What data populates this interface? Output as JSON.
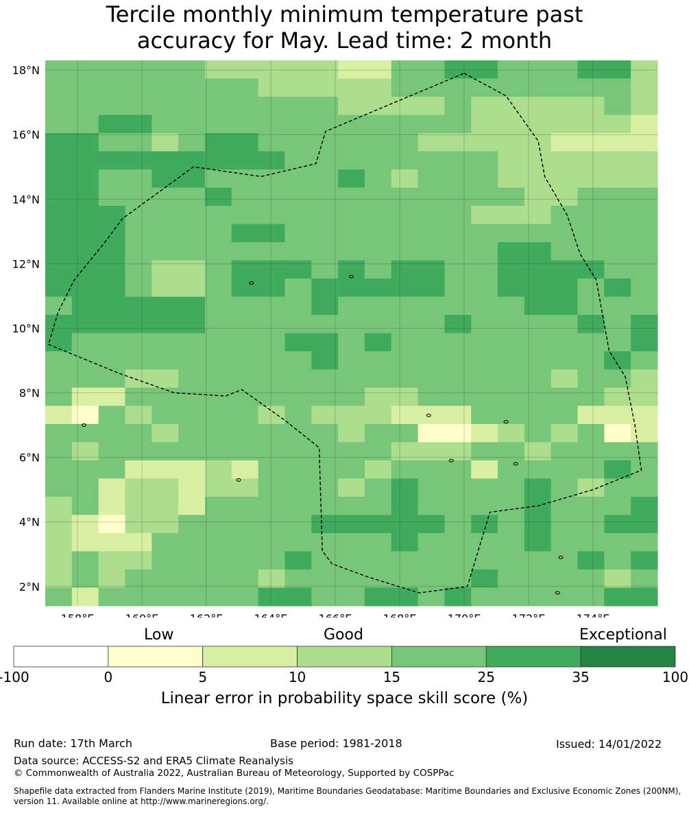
{
  "title": {
    "line1": "Tercile monthly minimum temperature past",
    "line2": "accuracy for May. Lead time: 2 month"
  },
  "chart_data": {
    "type": "heatmap",
    "title": "Tercile monthly minimum temperature past accuracy for May. Lead time: 2 month",
    "lon_range": [
      157,
      176
    ],
    "lat_range": [
      1.4,
      18.3
    ],
    "lon_ticks": [
      "158°E",
      "160°E",
      "162°E",
      "164°E",
      "166°E",
      "168°E",
      "170°E",
      "172°E",
      "174°E"
    ],
    "lat_ticks": [
      "18°N",
      "16°N",
      "14°N",
      "12°N",
      "10°N",
      "8°N",
      "6°N",
      "4°N",
      "2°N"
    ],
    "lon_tick_values": [
      158,
      160,
      162,
      164,
      166,
      168,
      170,
      172,
      174
    ],
    "lat_tick_values": [
      18,
      16,
      14,
      12,
      10,
      8,
      6,
      4,
      2
    ],
    "cell_size_deg": 0.833,
    "grid_categories": "values are colour classes 0..7: 0:-100..0, 1:0..5, 2:5..10, 3:10..15, 4:15..25, 5:25..35, 6:35..100",
    "grid": [
      [
        4,
        4,
        4,
        4,
        4,
        4,
        3,
        3,
        3,
        3,
        3,
        2,
        2,
        4,
        4,
        5,
        5,
        4,
        4,
        4,
        5,
        5,
        3
      ],
      [
        4,
        4,
        4,
        4,
        4,
        4,
        4,
        4,
        3,
        3,
        3,
        3,
        3,
        4,
        4,
        4,
        4,
        4,
        4,
        4,
        4,
        4,
        3
      ],
      [
        4,
        4,
        4,
        4,
        4,
        4,
        4,
        4,
        4,
        4,
        4,
        3,
        3,
        3,
        3,
        4,
        3,
        3,
        3,
        3,
        3,
        4,
        3
      ],
      [
        4,
        4,
        5,
        5,
        4,
        4,
        4,
        4,
        4,
        4,
        4,
        4,
        4,
        4,
        4,
        4,
        3,
        3,
        3,
        3,
        3,
        3,
        2
      ],
      [
        5,
        5,
        4,
        4,
        3,
        4,
        5,
        5,
        4,
        4,
        4,
        4,
        4,
        4,
        3,
        3,
        3,
        3,
        3,
        2,
        2,
        2,
        2
      ],
      [
        5,
        5,
        5,
        5,
        5,
        5,
        5,
        5,
        5,
        4,
        4,
        4,
        4,
        4,
        4,
        4,
        4,
        3,
        3,
        3,
        3,
        3,
        3
      ],
      [
        5,
        5,
        4,
        4,
        5,
        5,
        4,
        4,
        4,
        4,
        4,
        5,
        4,
        3,
        4,
        4,
        4,
        3,
        3,
        3,
        3,
        3,
        3
      ],
      [
        5,
        5,
        4,
        4,
        4,
        4,
        5,
        4,
        4,
        4,
        4,
        4,
        4,
        4,
        4,
        4,
        4,
        4,
        3,
        3,
        4,
        4,
        4
      ],
      [
        5,
        5,
        5,
        4,
        4,
        4,
        4,
        4,
        4,
        4,
        4,
        4,
        4,
        4,
        4,
        4,
        3,
        3,
        3,
        4,
        4,
        4,
        4
      ],
      [
        5,
        5,
        5,
        4,
        4,
        4,
        4,
        5,
        5,
        4,
        4,
        4,
        4,
        4,
        4,
        4,
        4,
        4,
        4,
        4,
        4,
        4,
        4
      ],
      [
        5,
        5,
        5,
        4,
        4,
        4,
        4,
        4,
        4,
        4,
        4,
        4,
        4,
        4,
        4,
        4,
        4,
        5,
        5,
        4,
        4,
        4,
        4
      ],
      [
        5,
        5,
        5,
        4,
        3,
        3,
        4,
        5,
        5,
        5,
        4,
        5,
        4,
        5,
        5,
        4,
        4,
        5,
        5,
        5,
        5,
        4,
        4
      ],
      [
        5,
        5,
        5,
        4,
        3,
        3,
        4,
        5,
        5,
        4,
        5,
        5,
        5,
        5,
        5,
        4,
        4,
        5,
        5,
        5,
        4,
        5,
        4
      ],
      [
        4,
        5,
        5,
        5,
        5,
        5,
        4,
        4,
        4,
        4,
        5,
        4,
        4,
        4,
        4,
        4,
        4,
        4,
        5,
        5,
        4,
        4,
        4
      ],
      [
        5,
        5,
        5,
        5,
        5,
        5,
        4,
        4,
        4,
        4,
        4,
        4,
        4,
        4,
        4,
        5,
        4,
        4,
        4,
        4,
        5,
        4,
        5
      ],
      [
        5,
        4,
        4,
        4,
        4,
        4,
        4,
        4,
        4,
        5,
        5,
        4,
        5,
        4,
        4,
        4,
        4,
        4,
        4,
        4,
        4,
        4,
        5
      ],
      [
        4,
        4,
        4,
        4,
        4,
        4,
        4,
        4,
        4,
        4,
        5,
        4,
        4,
        4,
        4,
        4,
        4,
        4,
        4,
        4,
        4,
        5,
        4
      ],
      [
        4,
        4,
        4,
        3,
        3,
        4,
        4,
        4,
        4,
        4,
        4,
        4,
        4,
        4,
        4,
        4,
        4,
        4,
        4,
        3,
        4,
        4,
        3
      ],
      [
        4,
        2,
        2,
        4,
        4,
        4,
        4,
        4,
        4,
        4,
        4,
        4,
        3,
        3,
        4,
        4,
        4,
        4,
        4,
        4,
        4,
        3,
        3
      ],
      [
        2,
        1,
        4,
        3,
        4,
        4,
        4,
        4,
        3,
        4,
        3,
        3,
        3,
        2,
        2,
        2,
        4,
        4,
        4,
        4,
        2,
        2,
        2
      ],
      [
        4,
        4,
        4,
        4,
        3,
        4,
        4,
        4,
        4,
        4,
        4,
        3,
        4,
        4,
        1,
        1,
        2,
        3,
        4,
        3,
        4,
        1,
        2
      ],
      [
        4,
        3,
        4,
        4,
        4,
        4,
        4,
        4,
        4,
        4,
        4,
        4,
        4,
        3,
        3,
        3,
        4,
        4,
        3,
        4,
        4,
        4,
        4
      ],
      [
        4,
        4,
        4,
        2,
        2,
        2,
        3,
        2,
        4,
        4,
        4,
        4,
        3,
        4,
        4,
        4,
        2,
        4,
        4,
        4,
        4,
        5,
        4
      ],
      [
        4,
        4,
        2,
        3,
        3,
        2,
        3,
        3,
        4,
        4,
        4,
        3,
        4,
        5,
        4,
        4,
        4,
        4,
        5,
        4,
        3,
        4,
        4
      ],
      [
        3,
        4,
        2,
        3,
        3,
        2,
        4,
        4,
        4,
        4,
        4,
        4,
        4,
        5,
        4,
        4,
        4,
        4,
        5,
        4,
        4,
        4,
        5
      ],
      [
        3,
        2,
        1,
        3,
        3,
        4,
        4,
        4,
        4,
        4,
        5,
        5,
        5,
        5,
        5,
        4,
        5,
        4,
        5,
        4,
        4,
        5,
        5
      ],
      [
        3,
        2,
        2,
        2,
        4,
        4,
        4,
        4,
        4,
        4,
        4,
        4,
        4,
        5,
        4,
        4,
        4,
        4,
        5,
        4,
        4,
        4,
        4
      ],
      [
        3,
        4,
        3,
        3,
        4,
        4,
        4,
        4,
        4,
        5,
        4,
        4,
        4,
        4,
        4,
        4,
        4,
        4,
        4,
        4,
        5,
        4,
        5
      ],
      [
        3,
        4,
        3,
        4,
        4,
        4,
        4,
        4,
        3,
        4,
        4,
        4,
        4,
        4,
        4,
        4,
        5,
        4,
        4,
        4,
        4,
        3,
        4
      ],
      [
        4,
        2,
        4,
        4,
        4,
        4,
        4,
        4,
        5,
        5,
        4,
        4,
        5,
        5,
        4,
        5,
        4,
        4,
        4,
        4,
        4,
        5,
        5
      ]
    ],
    "colorbar": {
      "segments": [
        {
          "from": "-100",
          "to": "0",
          "color": "#ffffff"
        },
        {
          "from": "0",
          "to": "5",
          "color": "#ffffcc"
        },
        {
          "from": "5",
          "to": "10",
          "color": "#d9f0a3"
        },
        {
          "from": "10",
          "to": "15",
          "color": "#addd8e"
        },
        {
          "from": "15",
          "to": "25",
          "color": "#78c679"
        },
        {
          "from": "25",
          "to": "35",
          "color": "#41ab5d"
        },
        {
          "from": "35",
          "to": "100",
          "color": "#238443"
        }
      ],
      "tick_labels": [
        "-100",
        "0",
        "5",
        "10",
        "15",
        "25",
        "35",
        "100"
      ],
      "category_labels": {
        "low": "Low",
        "good": "Good",
        "exceptional": "Exceptional"
      },
      "title": "Linear error in probability space skill score (%)"
    },
    "eez_boundary_lonlat": [
      [
        170.0,
        17.9
      ],
      [
        171.3,
        17.2
      ],
      [
        172.3,
        15.8
      ],
      [
        172.5,
        14.7
      ],
      [
        173.2,
        13.5
      ],
      [
        173.6,
        12.3
      ],
      [
        174.1,
        11.5
      ],
      [
        174.5,
        9.3
      ],
      [
        175.0,
        8.5
      ],
      [
        175.3,
        7.0
      ],
      [
        175.5,
        5.6
      ],
      [
        174.0,
        5.0
      ],
      [
        172.3,
        4.5
      ],
      [
        170.8,
        4.3
      ],
      [
        170.1,
        2.0
      ],
      [
        168.6,
        1.8
      ],
      [
        167.0,
        2.3
      ],
      [
        165.9,
        2.7
      ],
      [
        165.6,
        3.1
      ],
      [
        165.5,
        6.3
      ],
      [
        164.5,
        7.1
      ],
      [
        163.1,
        8.1
      ],
      [
        162.6,
        7.9
      ],
      [
        161.0,
        8.0
      ],
      [
        159.3,
        8.6
      ],
      [
        157.1,
        9.5
      ],
      [
        157.4,
        10.5
      ],
      [
        157.9,
        11.5
      ],
      [
        158.8,
        12.6
      ],
      [
        159.4,
        13.4
      ],
      [
        161.6,
        15.0
      ],
      [
        163.7,
        14.7
      ],
      [
        165.4,
        15.1
      ],
      [
        165.7,
        16.1
      ],
      [
        170.0,
        17.9
      ]
    ],
    "islands_lonlat": [
      [
        158.2,
        7.0
      ],
      [
        163.0,
        5.3
      ],
      [
        168.9,
        7.3
      ],
      [
        171.3,
        7.1
      ],
      [
        169.6,
        5.9
      ],
      [
        173.0,
        2.9
      ],
      [
        172.9,
        1.8
      ],
      [
        171.6,
        5.8
      ],
      [
        166.5,
        11.6
      ],
      [
        163.4,
        11.4
      ]
    ]
  },
  "colorbar": {
    "low": "Low",
    "good": "Good",
    "exceptional": "Exceptional",
    "ticks": [
      "-100",
      "0",
      "5",
      "10",
      "15",
      "25",
      "35",
      "100"
    ],
    "title": "Linear error in probability space skill score (%)"
  },
  "footer": {
    "run_date": "Run date: 17th March",
    "base_period": "Base period: 1981-2018",
    "issued": "Issued: 14/01/2022",
    "data_source": "Data source: ACCESS-S2 and ERA5 Climate Reanalysis",
    "copyright": "© Commonwealth of Australia 2022, Australian Bureau of Meteorology, Supported by COSPPac",
    "shapefile_line1": "Shapefile data extracted from Flanders Marine Institute (2019), Maritime Boundaries Geodatabase: Maritime Boundaries and Exclusive Economic Zones (200NM),",
    "shapefile_line2": "version 11. Available online at http://www.marineregions.org/."
  }
}
